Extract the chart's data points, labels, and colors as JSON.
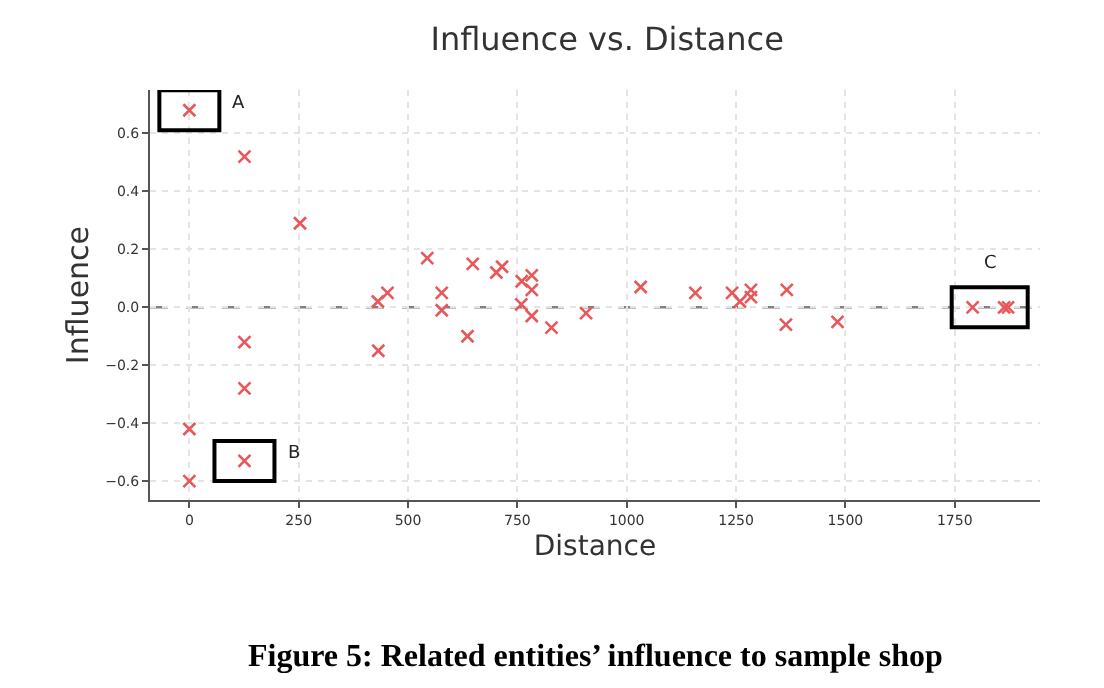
{
  "chart_data": {
    "type": "scatter",
    "title": "Influence vs. Distance",
    "xlabel": "Distance",
    "ylabel": "Influence",
    "x": [
      0,
      126,
      253,
      126,
      126,
      0,
      126,
      0,
      431,
      453,
      432,
      544,
      577,
      577,
      636,
      648,
      702,
      715,
      760,
      783,
      783,
      759,
      783,
      828,
      907,
      1032,
      1157,
      1241,
      1259,
      1284,
      1284,
      1366,
      1364,
      1482,
      1791,
      1863,
      1872
    ],
    "series": [
      {
        "color": "#e8585a",
        "values": [
          0.68,
          0.52,
          0.29,
          -0.12,
          -0.28,
          -0.42,
          -0.53,
          -0.6,
          0.02,
          0.05,
          -0.15,
          0.17,
          0.05,
          -0.01,
          -0.1,
          0.15,
          0.12,
          0.14,
          0.09,
          0.11,
          0.06,
          0.01,
          -0.03,
          -0.07,
          -0.02,
          0.07,
          0.05,
          0.05,
          0.02,
          0.06,
          0.035,
          0.06,
          -0.06,
          -0.05,
          0.0,
          0.0,
          0.0
        ]
      }
    ],
    "xlim": [
      -90,
      1945
    ],
    "xticks": [
      0,
      250,
      500,
      750,
      1000,
      1250,
      1500,
      1750
    ],
    "ylim": [
      -0.665,
      0.75
    ],
    "yticks": [
      {
        "value": -0.6,
        "label": "−0.6"
      },
      {
        "value": -0.4,
        "label": "−0.4"
      },
      {
        "value": -0.2,
        "label": "−0.2"
      },
      {
        "value": 0,
        "label": "0.0"
      },
      0.2,
      0.4,
      0.6
    ],
    "grid": true,
    "marker": "cross",
    "ref_lines": [
      {
        "axis": "y",
        "value": 0,
        "color": "#808080",
        "line_style": "dashed"
      }
    ],
    "annotations": [
      {
        "text": "A",
        "x": 0,
        "y": 0.68
      },
      {
        "text": "B",
        "x": 126,
        "y": -0.53
      },
      {
        "text": "C",
        "x": 1830,
        "y": 0
      },
      "Figure 5: Related entities’ influence to sample shop"
    ]
  }
}
